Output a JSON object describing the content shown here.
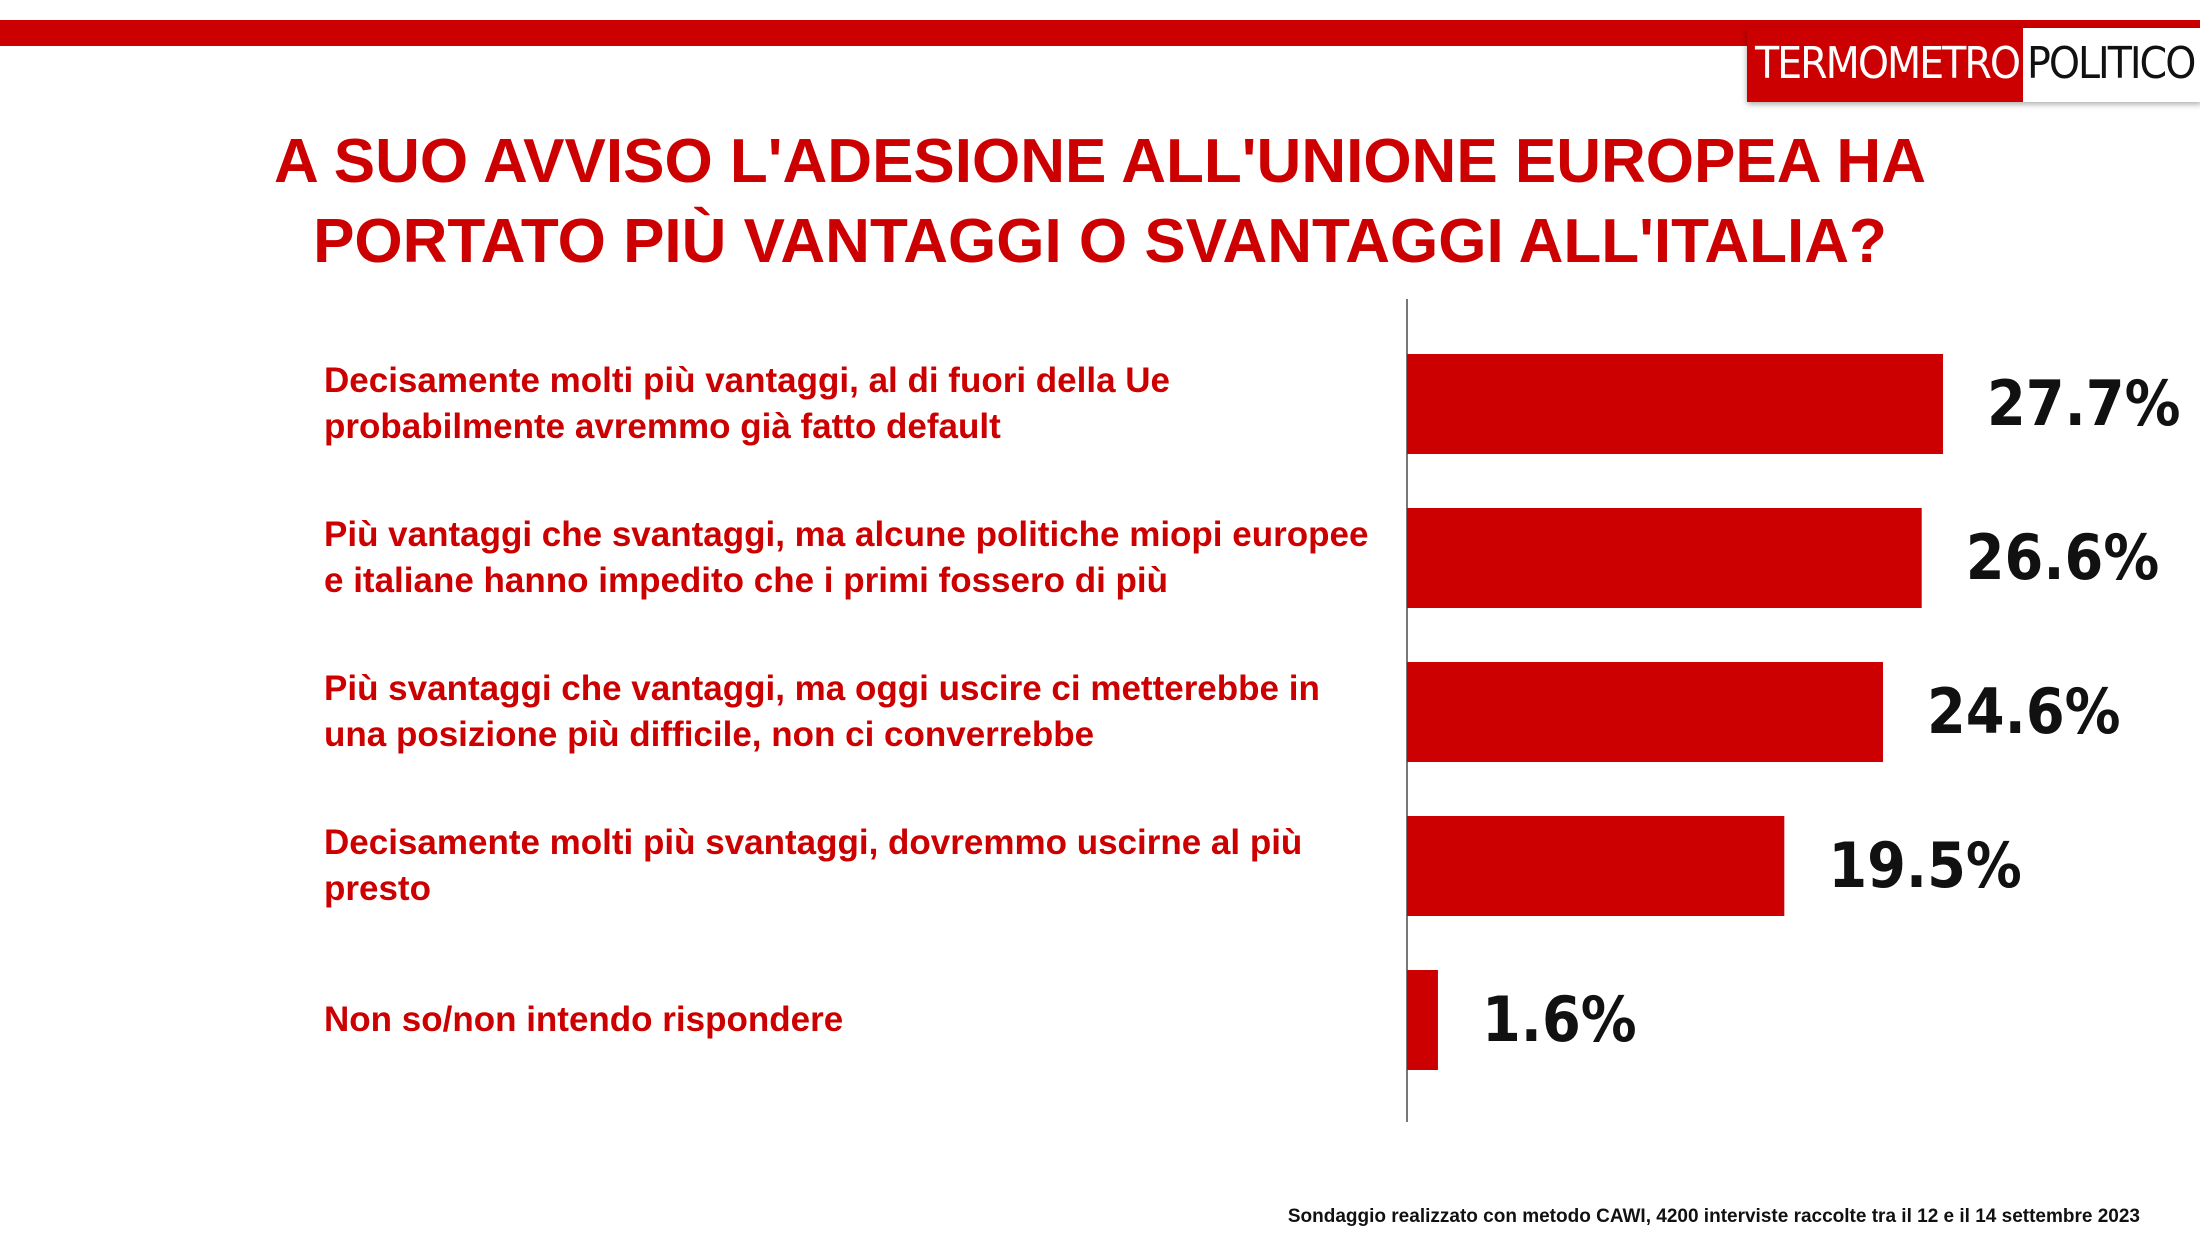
{
  "brand": {
    "left": "TERMOMETRO",
    "right": "POLITICO"
  },
  "chart_data": {
    "type": "bar",
    "title": "A SUO AVVISO L'ADESIONE ALL'UNIONE EUROPEA HA PORTATO PIÙ VANTAGGI O SVANTAGGI ALL'ITALIA?",
    "categories": [
      "Decisamente molti più vantaggi, al di fuori della Ue probabilmente avremmo già  fatto default",
      "Più vantaggi che svantaggi, ma alcune politiche miopi europee e italiane hanno impedito che i primi fossero di più",
      "Più svantaggi che vantaggi, ma oggi uscire ci metterebbe in una posizione più difficile, non ci converrebbe",
      "Decisamente molti più svantaggi, dovremmo uscirne al più presto",
      "Non so/non intendo rispondere"
    ],
    "values": [
      27.7,
      26.6,
      24.6,
      19.5,
      1.6
    ],
    "value_labels": [
      "27.7%",
      "26.6%",
      "24.6%",
      "19.5%",
      "1.6%"
    ],
    "color": "#cc0000",
    "note": "Sondaggio realizzato con metodo CAWI, 4200 interviste raccolte tra il 12 e il 14 settembre 2023"
  }
}
